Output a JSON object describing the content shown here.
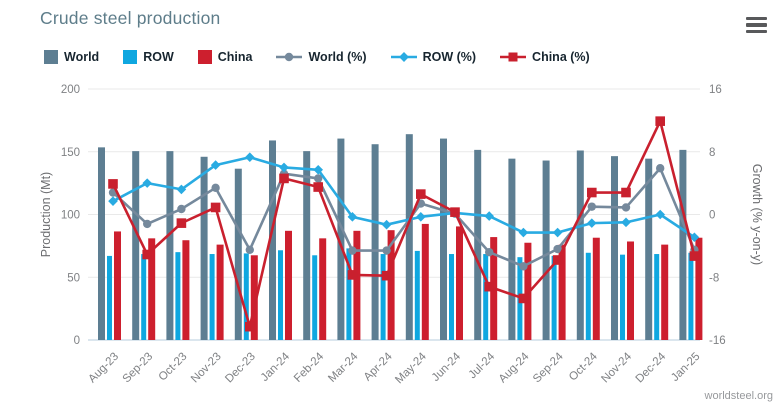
{
  "header": {
    "title": "Crude steel production"
  },
  "menu": {
    "icon": "hamburger-icon"
  },
  "footer": {
    "credit": "worldsteel.org"
  },
  "colors": {
    "world_bar": "#5d7e92",
    "row_bar": "#0fa7e0",
    "china_bar": "#cd1f2e",
    "world_line": "#75899c",
    "row_line": "#29abe2",
    "china_line": "#c9202e",
    "grid": "#e9e9e9",
    "axis_line": "#cfdde8",
    "tick_text": "#7f8184",
    "axis_title": "#6d6e71"
  },
  "legend": [
    {
      "label": "World",
      "type": "bar",
      "marker": "square-swatch",
      "color": "#5d7e92"
    },
    {
      "label": "ROW",
      "type": "bar",
      "marker": "square-swatch",
      "color": "#0fa7e0"
    },
    {
      "label": "China",
      "type": "bar",
      "marker": "square-swatch",
      "color": "#cd1f2e"
    },
    {
      "label": "World (%)",
      "type": "line",
      "marker": "circle",
      "color": "#75899c"
    },
    {
      "label": "ROW (%)",
      "type": "line",
      "marker": "diamond",
      "color": "#29abe2"
    },
    {
      "label": "China (%)",
      "type": "line",
      "marker": "square",
      "color": "#c9202e"
    }
  ],
  "chart_data": {
    "type": "bar",
    "subtype": "grouped bars with overlaid growth lines",
    "title": "Crude steel production",
    "categories": [
      "Aug-23",
      "Sep-23",
      "Oct-23",
      "Nov-23",
      "Dec-23",
      "Jan-24",
      "Feb-24",
      "Mar-24",
      "Apr-24",
      "May-24",
      "Jun-24",
      "Jul-24",
      "Aug-24",
      "Sep-24",
      "Oct-24",
      "Nov-24",
      "Dec-24",
      "Jan-25"
    ],
    "bar_series": [
      {
        "name": "World",
        "axis": "left",
        "values": [
          153.5,
          150.5,
          150.5,
          146,
          136.5,
          159,
          150.5,
          160.5,
          156,
          164,
          160.5,
          151.5,
          144.5,
          143,
          151,
          146.5,
          144.5,
          151.5
        ]
      },
      {
        "name": "ROW",
        "axis": "left",
        "values": [
          67,
          68.5,
          70,
          68.5,
          69,
          71.5,
          67.5,
          73,
          68.5,
          71,
          68.5,
          68.5,
          66,
          67,
          69.5,
          68,
          68.5,
          69.5
        ]
      },
      {
        "name": "China",
        "axis": "left",
        "values": [
          86.5,
          81,
          79.5,
          76,
          67.5,
          87,
          81,
          87,
          87.5,
          92.5,
          90.5,
          82,
          77.5,
          76,
          81.5,
          78.5,
          76,
          81.5
        ]
      }
    ],
    "line_series": [
      {
        "name": "World (%)",
        "axis": "right",
        "marker": "circle",
        "values": [
          2.8,
          -1.2,
          0.7,
          3.4,
          -4.5,
          5.2,
          4.6,
          -4.6,
          -4.6,
          1.4,
          0.1,
          -4.8,
          -6.6,
          -4.4,
          1.0,
          0.9,
          5.9,
          -4.5
        ]
      },
      {
        "name": "ROW (%)",
        "axis": "right",
        "marker": "diamond",
        "values": [
          1.7,
          4.0,
          3.2,
          6.3,
          7.3,
          6.0,
          5.7,
          -0.3,
          -1.3,
          -0.3,
          0.2,
          -0.2,
          -2.3,
          -2.3,
          -1.1,
          -1.0,
          0.0,
          -2.9
        ]
      },
      {
        "name": "China (%)",
        "axis": "right",
        "marker": "square",
        "values": [
          3.9,
          -5.1,
          -1.1,
          0.9,
          -14.3,
          4.6,
          3.5,
          -7.7,
          -7.8,
          2.6,
          0.3,
          -9.2,
          -10.7,
          -5.8,
          2.8,
          2.8,
          11.9,
          -5.3
        ]
      }
    ],
    "left_axis": {
      "label": "Production (Mt)",
      "ticks": [
        0,
        50,
        100,
        150,
        200
      ],
      "range": [
        0,
        200
      ]
    },
    "right_axis": {
      "label": "Growth (% y-on-y)",
      "ticks": [
        -16,
        -8,
        0,
        8,
        16
      ],
      "range": [
        -16,
        16
      ]
    },
    "grid": "horizontal",
    "legend_position": "top"
  }
}
